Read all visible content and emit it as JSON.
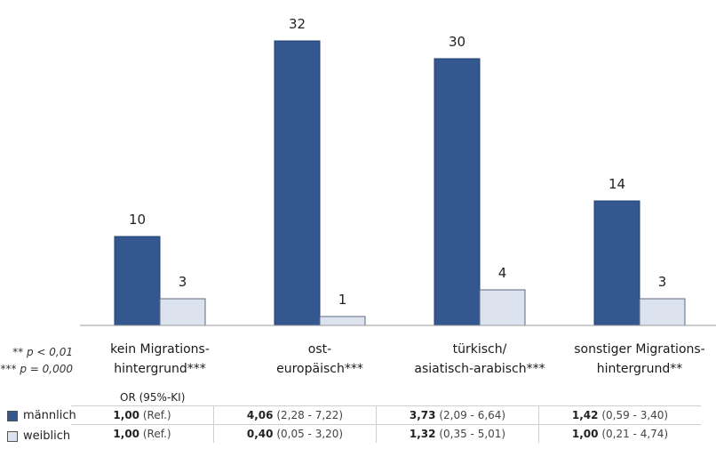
{
  "chart_data": {
    "type": "bar",
    "categories": [
      [
        "kein Migrations-",
        "hintergrund***"
      ],
      [
        "ost-",
        "europäisch***"
      ],
      [
        "türkisch/",
        "asiatisch-arabisch***"
      ],
      [
        "sonstiger Migrations-",
        "hintergrund**"
      ]
    ],
    "series": [
      {
        "name": "männlich",
        "values": [
          10,
          32,
          30,
          14
        ],
        "color": "#34578f"
      },
      {
        "name": "weiblich",
        "values": [
          3,
          1,
          4,
          3
        ],
        "color": "#dce3ee"
      }
    ],
    "ylim": [
      0,
      32
    ],
    "grid": false,
    "data_labels": true
  },
  "footnotes": [
    "** p < 0,01",
    "*** p = 0,000"
  ],
  "or_table": {
    "header": "OR (95%-KI)",
    "rows": [
      {
        "label": "männlich",
        "cells": [
          {
            "value": "1,00",
            "ci": "(Ref.)",
            "bold": false
          },
          {
            "value": "4,06",
            "ci": "(2,28 - 7,22)",
            "bold": true
          },
          {
            "value": "3,73",
            "ci": "(2,09 - 6,64)",
            "bold": true
          },
          {
            "value": "1,42",
            "ci": "(0,59 - 3,40)",
            "bold": true
          }
        ]
      },
      {
        "label": "weiblich",
        "cells": [
          {
            "value": "1,00",
            "ci": "(Ref.)",
            "bold": false
          },
          {
            "value": "0,40",
            "ci": "(0,05 - 3,20)",
            "bold": true
          },
          {
            "value": "1,32",
            "ci": "(0,35 - 5,01)",
            "bold": true
          },
          {
            "value": "1,00",
            "ci": "(0,21 - 4,74)",
            "bold": true
          }
        ]
      }
    ]
  }
}
